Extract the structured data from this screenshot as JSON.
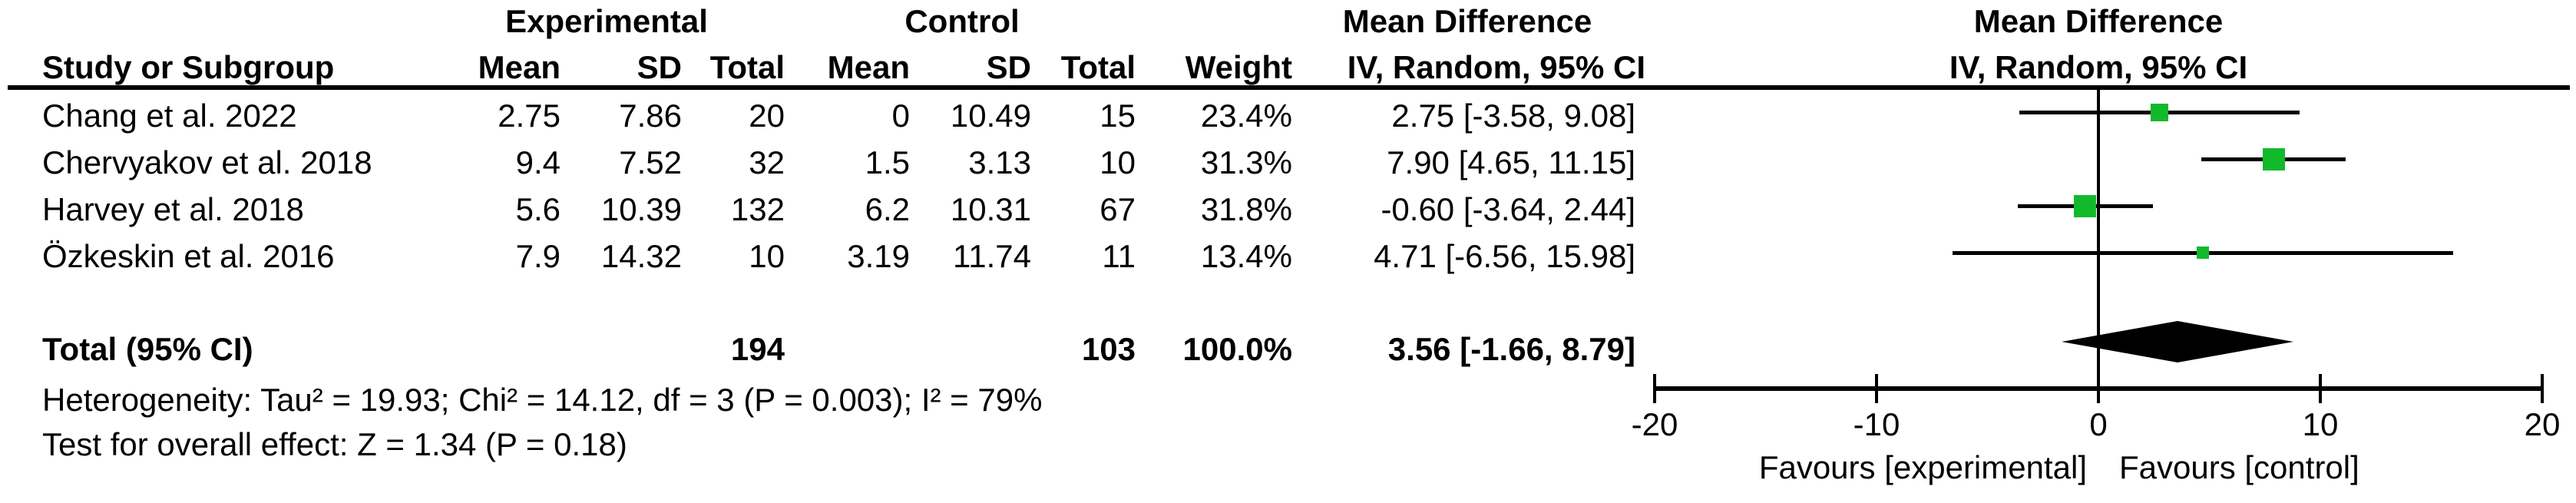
{
  "colors": {
    "square_green": "#12B92B",
    "line_black": "#000000",
    "text_black": "#000000"
  },
  "table": {
    "group_headers": {
      "experimental": "Experimental",
      "control": "Control",
      "mean_difference": "Mean Difference"
    },
    "columns": {
      "study": "Study or Subgroup",
      "mean": "Mean",
      "sd": "SD",
      "total": "Total",
      "weight": "Weight",
      "ci": "IV, Random, 95% CI"
    },
    "rows": [
      {
        "study": "Chang et al. 2022",
        "e_mean": "2.75",
        "e_sd": "7.86",
        "e_total": "20",
        "c_mean": "0",
        "c_sd": "10.49",
        "c_total": "15",
        "weight": "23.4%",
        "ci": "2.75 [-3.58, 9.08]"
      },
      {
        "study": "Chervyakov et al. 2018",
        "e_mean": "9.4",
        "e_sd": "7.52",
        "e_total": "32",
        "c_mean": "1.5",
        "c_sd": "3.13",
        "c_total": "10",
        "weight": "31.3%",
        "ci": "7.90 [4.65, 11.15]"
      },
      {
        "study": "Harvey et al. 2018",
        "e_mean": "5.6",
        "e_sd": "10.39",
        "e_total": "132",
        "c_mean": "6.2",
        "c_sd": "10.31",
        "c_total": "67",
        "weight": "31.8%",
        "ci": "-0.60 [-3.64, 2.44]"
      },
      {
        "study": "Özkeskin et al. 2016",
        "e_mean": "7.9",
        "e_sd": "14.32",
        "e_total": "10",
        "c_mean": "3.19",
        "c_sd": "11.74",
        "c_total": "11",
        "weight": "13.4%",
        "ci": "4.71 [-6.56, 15.98]"
      }
    ],
    "total": {
      "label": "Total (95% CI)",
      "e_total": "194",
      "c_total": "103",
      "weight": "100.0%",
      "ci": "3.56 [-1.66, 8.79]"
    },
    "heterogeneity": "Heterogeneity: Tau² = 19.93; Chi² = 14.12, df = 3 (P = 0.003); I² = 79%",
    "overall_effect": "Test for overall effect: Z = 1.34 (P = 0.18)"
  },
  "chart_data": {
    "type": "forest",
    "title": "Mean Difference",
    "subtitle": "IV, Random, 95% CI",
    "xlim": [
      -20,
      20
    ],
    "ticks": [
      -20,
      -10,
      0,
      10,
      20
    ],
    "favours_left": "Favours [experimental]",
    "favours_right": "Favours [control]",
    "studies": [
      {
        "name": "Chang et al. 2022",
        "est": 2.75,
        "lo": -3.58,
        "hi": 9.08,
        "weight": 23.4
      },
      {
        "name": "Chervyakov et al. 2018",
        "est": 7.9,
        "lo": 4.65,
        "hi": 11.15,
        "weight": 31.3
      },
      {
        "name": "Harvey et al. 2018",
        "est": -0.6,
        "lo": -3.64,
        "hi": 2.44,
        "weight": 31.8
      },
      {
        "name": "Özkeskin et al. 2016",
        "est": 4.71,
        "lo": -6.56,
        "hi": 15.98,
        "weight": 13.4
      }
    ],
    "total": {
      "est": 3.56,
      "lo": -1.66,
      "hi": 8.79
    }
  }
}
